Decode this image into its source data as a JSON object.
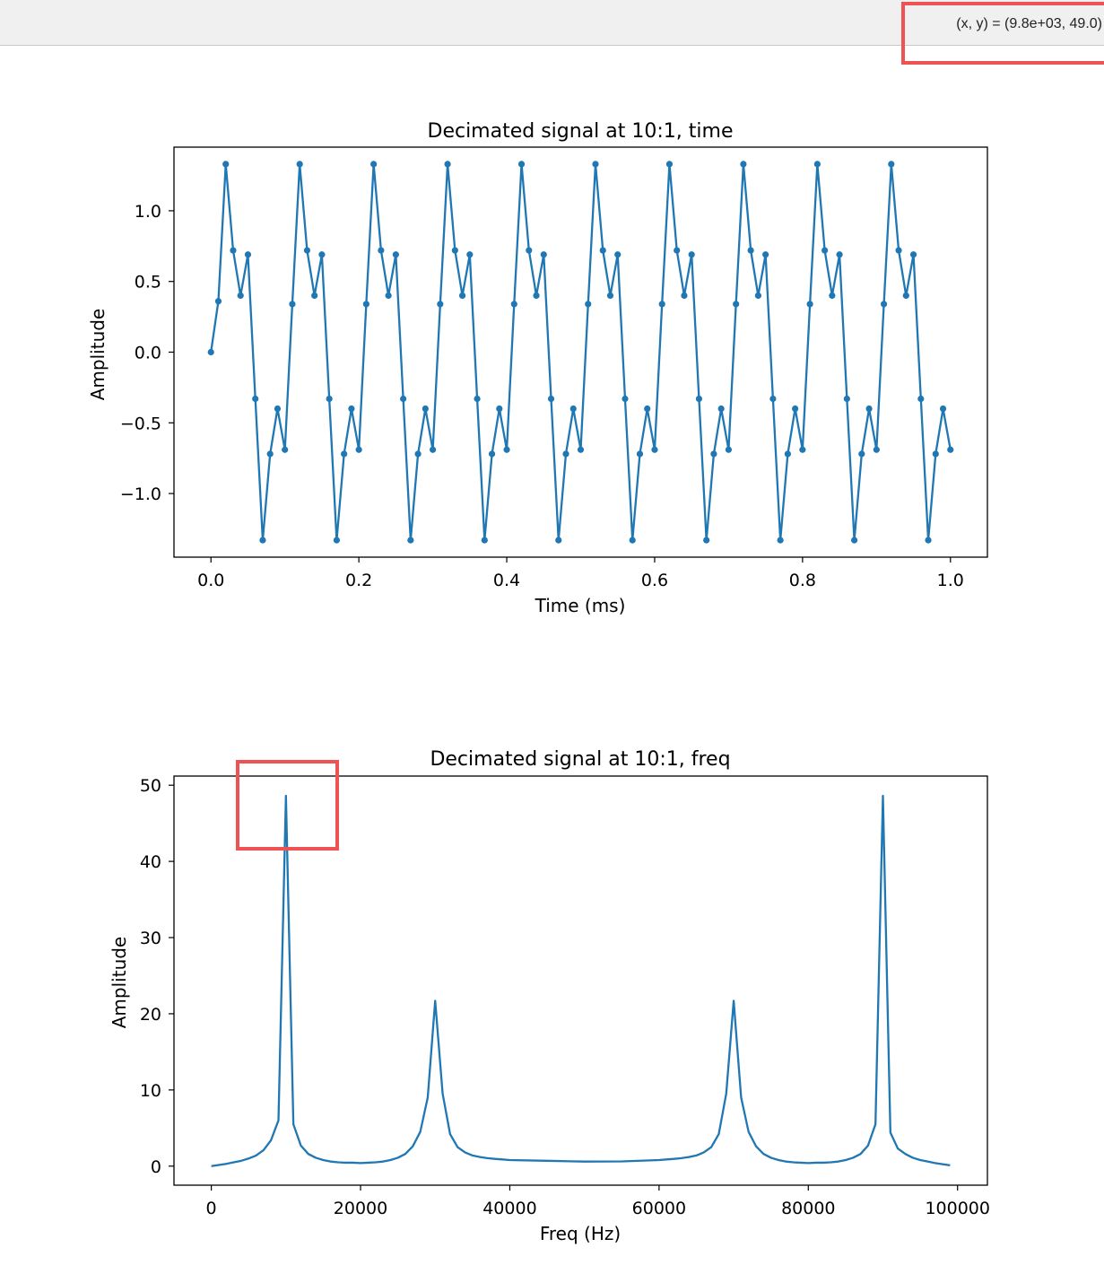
{
  "toolbar": {
    "coordinate_readout": "(x, y) = (9.8e+03, 49.0)"
  },
  "colors": {
    "series": "#1f77b4",
    "highlight": "#ee5253"
  },
  "chart_data": [
    {
      "type": "line",
      "title": "Decimated signal at 10:1, time",
      "xlabel": "Time (ms)",
      "ylabel": "Amplitude",
      "markers": true,
      "xlim": [
        -0.05,
        1.05
      ],
      "ylim": [
        -1.45,
        1.45
      ],
      "xticks": [
        0.0,
        0.2,
        0.4,
        0.6,
        0.8,
        1.0
      ],
      "xtick_labels": [
        "0.0",
        "0.2",
        "0.4",
        "0.6",
        "0.8",
        "1.0"
      ],
      "yticks": [
        -1.0,
        -0.5,
        0.0,
        0.5,
        1.0
      ],
      "ytick_labels": [
        "−1.0",
        "−0.5",
        "0.0",
        "0.5",
        "1.0"
      ],
      "x": [
        0.0,
        0.01,
        0.02,
        0.03,
        0.04,
        0.05,
        0.06,
        0.07,
        0.08,
        0.09,
        0.1,
        0.11,
        0.12,
        0.13,
        0.14,
        0.15,
        0.16,
        0.17,
        0.18,
        0.19,
        0.2,
        0.21,
        0.22,
        0.23,
        0.24,
        0.25,
        0.26,
        0.27,
        0.28,
        0.29,
        0.3,
        0.31,
        0.32,
        0.33,
        0.34,
        0.35,
        0.36,
        0.37,
        0.38,
        0.39,
        0.4,
        0.41,
        0.42,
        0.43,
        0.44,
        0.45,
        0.46,
        0.47,
        0.48,
        0.49,
        0.5,
        0.51,
        0.52,
        0.53,
        0.54,
        0.55,
        0.56,
        0.57,
        0.58,
        0.59,
        0.6,
        0.61,
        0.62,
        0.63,
        0.64,
        0.65,
        0.66,
        0.67,
        0.68,
        0.69,
        0.7,
        0.71,
        0.72,
        0.73,
        0.74,
        0.75,
        0.76,
        0.77,
        0.78,
        0.79,
        0.8,
        0.81,
        0.82,
        0.83,
        0.84,
        0.85,
        0.86,
        0.87,
        0.88,
        0.89,
        0.9,
        0.91,
        0.92,
        0.93,
        0.94,
        0.95,
        0.96,
        0.97,
        0.98,
        0.99,
        1.0
      ],
      "y": [
        0.0,
        0.36,
        1.33,
        0.72,
        0.4,
        0.69,
        -0.33,
        -1.33,
        -0.72,
        -0.4,
        -0.69,
        0.34,
        1.33,
        0.72,
        0.4,
        0.69,
        -0.33,
        -1.33,
        -0.72,
        -0.4,
        -0.69,
        0.34,
        1.33,
        0.72,
        0.4,
        0.69,
        -0.33,
        -1.33,
        -0.72,
        -0.4,
        -0.69,
        0.34,
        1.33,
        0.72,
        0.4,
        0.69,
        -0.33,
        -1.33,
        -0.72,
        -0.4,
        -0.69,
        0.34,
        1.33,
        0.72,
        0.4,
        0.69,
        -0.33,
        -1.33,
        -0.72,
        -0.4,
        -0.69,
        0.34,
        1.33,
        0.72,
        0.4,
        0.69,
        -0.33,
        -1.33,
        -0.72,
        -0.4,
        -0.69,
        0.34,
        1.33,
        0.72,
        0.4,
        0.69,
        -0.33,
        -1.33,
        -0.72,
        -0.4,
        -0.69,
        0.34,
        1.33,
        0.72,
        0.4,
        0.69,
        -0.33,
        -1.33,
        -0.72,
        -0.4,
        -0.69,
        0.34,
        1.33,
        0.72,
        0.4,
        0.69,
        -0.33,
        -1.33,
        -0.72,
        -0.4,
        -0.69,
        0.34,
        1.33,
        0.72,
        0.4,
        0.69,
        -0.33,
        -1.33,
        -0.72,
        -0.4,
        -0.69
      ]
    },
    {
      "type": "line",
      "title": "Decimated signal at 10:1, freq",
      "xlabel": "Freq (Hz)",
      "ylabel": "Amplitude",
      "markers": false,
      "xlim": [
        -5000,
        104000
      ],
      "ylim": [
        -2.5,
        51.2
      ],
      "xticks": [
        0,
        20000,
        40000,
        60000,
        80000,
        100000
      ],
      "xtick_labels": [
        "0",
        "20000",
        "40000",
        "60000",
        "80000",
        "100000"
      ],
      "yticks": [
        0,
        10,
        20,
        30,
        40,
        50
      ],
      "ytick_labels": [
        "0",
        "10",
        "20",
        "30",
        "40",
        "50"
      ],
      "x": [
        0,
        1000,
        2000,
        3000,
        4000,
        5000,
        6000,
        7000,
        8000,
        9000,
        10000,
        11000,
        12000,
        13000,
        14000,
        15000,
        16000,
        17000,
        18000,
        19000,
        20000,
        21000,
        22000,
        23000,
        24000,
        25000,
        26000,
        27000,
        28000,
        29000,
        30000,
        31000,
        32000,
        33000,
        34000,
        35000,
        36000,
        37000,
        38000,
        39000,
        40000,
        45000,
        50000,
        55000,
        60000,
        61000,
        62000,
        63000,
        64000,
        65000,
        66000,
        67000,
        68000,
        69000,
        70000,
        71000,
        72000,
        73000,
        74000,
        75000,
        76000,
        77000,
        78000,
        79000,
        80000,
        81000,
        82000,
        83000,
        84000,
        85000,
        86000,
        87000,
        88000,
        89000,
        90000,
        91000,
        92000,
        93000,
        94000,
        95000,
        96000,
        97000,
        98000,
        99000
      ],
      "y": [
        0,
        0.15,
        0.3,
        0.5,
        0.7,
        1.0,
        1.4,
        2.1,
        3.4,
        6.0,
        48.6,
        5.5,
        2.7,
        1.6,
        1.1,
        0.8,
        0.6,
        0.5,
        0.45,
        0.45,
        0.4,
        0.45,
        0.5,
        0.6,
        0.8,
        1.1,
        1.6,
        2.6,
        4.5,
        9.0,
        21.7,
        9.5,
        4.2,
        2.5,
        1.8,
        1.4,
        1.2,
        1.05,
        0.95,
        0.88,
        0.8,
        0.7,
        0.6,
        0.62,
        0.8,
        0.88,
        0.95,
        1.05,
        1.2,
        1.4,
        1.8,
        2.5,
        4.2,
        9.5,
        21.7,
        9.0,
        4.5,
        2.6,
        1.6,
        1.1,
        0.8,
        0.6,
        0.5,
        0.45,
        0.4,
        0.45,
        0.45,
        0.5,
        0.6,
        0.8,
        1.1,
        1.6,
        2.7,
        5.5,
        48.6,
        4.4,
        2.3,
        1.6,
        1.1,
        0.8,
        0.6,
        0.4,
        0.25,
        0.1
      ]
    }
  ]
}
